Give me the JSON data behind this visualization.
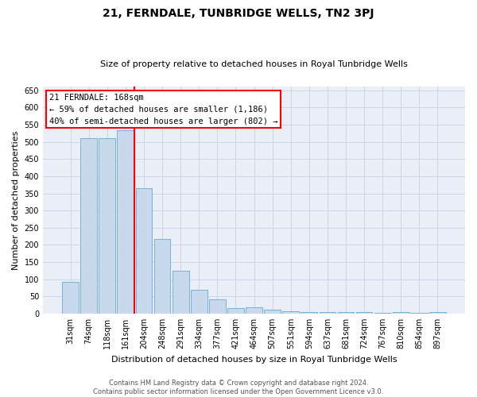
{
  "title": "21, FERNDALE, TUNBRIDGE WELLS, TN2 3PJ",
  "subtitle": "Size of property relative to detached houses in Royal Tunbridge Wells",
  "xlabel": "Distribution of detached houses by size in Royal Tunbridge Wells",
  "ylabel": "Number of detached properties",
  "footer1": "Contains HM Land Registry data © Crown copyright and database right 2024.",
  "footer2": "Contains public sector information licensed under the Open Government Licence v3.0.",
  "annotation_line1": "21 FERNDALE: 168sqm",
  "annotation_line2": "← 59% of detached houses are smaller (1,186)",
  "annotation_line3": "40% of semi-detached houses are larger (802) →",
  "bar_color": "#c8d9ee",
  "bar_edge_color": "#6aaad4",
  "grid_color": "#cdd6e8",
  "bg_color": "#eaeef6",
  "categories": [
    "31sqm",
    "74sqm",
    "118sqm",
    "161sqm",
    "204sqm",
    "248sqm",
    "291sqm",
    "334sqm",
    "377sqm",
    "421sqm",
    "464sqm",
    "507sqm",
    "551sqm",
    "594sqm",
    "637sqm",
    "681sqm",
    "724sqm",
    "767sqm",
    "810sqm",
    "854sqm",
    "897sqm"
  ],
  "bar_heights": [
    92,
    510,
    510,
    533,
    365,
    217,
    125,
    70,
    42,
    17,
    19,
    11,
    6,
    5,
    5,
    5,
    5,
    2,
    5,
    2,
    5
  ],
  "red_line_bin": 3,
  "ylim": [
    0,
    660
  ],
  "yticks": [
    0,
    50,
    100,
    150,
    200,
    250,
    300,
    350,
    400,
    450,
    500,
    550,
    600,
    650
  ],
  "title_fontsize": 10,
  "subtitle_fontsize": 8,
  "ylabel_fontsize": 8,
  "xlabel_fontsize": 8,
  "tick_fontsize": 7,
  "footer_fontsize": 6,
  "annot_fontsize": 7.5
}
